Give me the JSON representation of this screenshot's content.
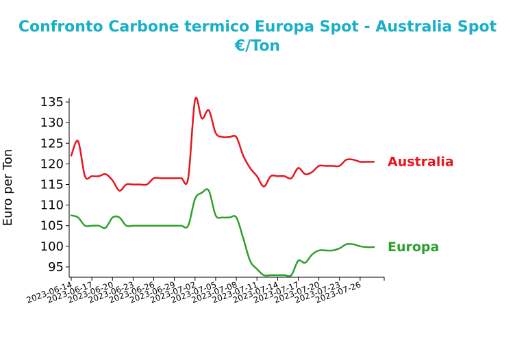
{
  "chart_data": {
    "type": "line",
    "title": "Confronto Carbone termico Europa Spot - Australia Spot",
    "subtitle": "€/Ton",
    "ylabel": "Euro per Ton",
    "xlabel": "",
    "ylim": [
      92.5,
      136
    ],
    "yticks": [
      95,
      100,
      105,
      110,
      115,
      120,
      125,
      130,
      135
    ],
    "xlim": [
      "2023-06-14",
      "2023-07-29"
    ],
    "xticks": [
      "2023-06-14",
      "2023-06-17",
      "2023-06-20",
      "2023-06-23",
      "2023-06-26",
      "2023-06-29",
      "2023-07-02",
      "2023-07-05",
      "2023-07-08",
      "2023-07-11",
      "2023-07-14",
      "2023-07-17",
      "2023-07-20",
      "2023-07-23",
      "2023-07-26"
    ],
    "grid": false,
    "legend": "right, labels at line ends",
    "series": [
      {
        "name": "Australia",
        "color": "#e8141c",
        "x": [
          "2023-06-14",
          "2023-06-15",
          "2023-06-16",
          "2023-06-17",
          "2023-06-18",
          "2023-06-19",
          "2023-06-20",
          "2023-06-21",
          "2023-06-22",
          "2023-06-23",
          "2023-06-24",
          "2023-06-25",
          "2023-06-26",
          "2023-06-27",
          "2023-06-28",
          "2023-06-29",
          "2023-06-30",
          "2023-07-01",
          "2023-07-02",
          "2023-07-03",
          "2023-07-04",
          "2023-07-05",
          "2023-07-06",
          "2023-07-07",
          "2023-07-08",
          "2023-07-09",
          "2023-07-10",
          "2023-07-11",
          "2023-07-12",
          "2023-07-13",
          "2023-07-14",
          "2023-07-15",
          "2023-07-16",
          "2023-07-17",
          "2023-07-18",
          "2023-07-19",
          "2023-07-20",
          "2023-07-21",
          "2023-07-22",
          "2023-07-23",
          "2023-07-24",
          "2023-07-25",
          "2023-07-26",
          "2023-07-27",
          "2023-07-28"
        ],
        "values": [
          122,
          125.5,
          117,
          117,
          117,
          117.5,
          116,
          113.5,
          115,
          115,
          115,
          115,
          116.5,
          116.5,
          116.5,
          116.5,
          116.5,
          116.5,
          135.5,
          131,
          133,
          127.5,
          126.5,
          126.5,
          126.5,
          122,
          119,
          117,
          114.5,
          117,
          117,
          117,
          116.5,
          119,
          117.5,
          118,
          119.5,
          119.5,
          119.5,
          119.5,
          121,
          121,
          120.5,
          120.5,
          120.5
        ]
      },
      {
        "name": "Europa",
        "color": "#2ca02c",
        "x": [
          "2023-06-14",
          "2023-06-15",
          "2023-06-16",
          "2023-06-17",
          "2023-06-18",
          "2023-06-19",
          "2023-06-20",
          "2023-06-21",
          "2023-06-22",
          "2023-06-23",
          "2023-06-24",
          "2023-06-25",
          "2023-06-26",
          "2023-06-27",
          "2023-06-28",
          "2023-06-29",
          "2023-06-30",
          "2023-07-01",
          "2023-07-02",
          "2023-07-03",
          "2023-07-04",
          "2023-07-05",
          "2023-07-06",
          "2023-07-07",
          "2023-07-08",
          "2023-07-09",
          "2023-07-10",
          "2023-07-11",
          "2023-07-12",
          "2023-07-13",
          "2023-07-14",
          "2023-07-15",
          "2023-07-16",
          "2023-07-17",
          "2023-07-18",
          "2023-07-19",
          "2023-07-20",
          "2023-07-21",
          "2023-07-22",
          "2023-07-23",
          "2023-07-24",
          "2023-07-25",
          "2023-07-26",
          "2023-07-27",
          "2023-07-28"
        ],
        "values": [
          107.5,
          107,
          105,
          105,
          105,
          104.5,
          107,
          107,
          105,
          105,
          105,
          105,
          105,
          105,
          105,
          105,
          105,
          105,
          111.5,
          113,
          113.5,
          107.5,
          107,
          107,
          107,
          102,
          96.5,
          94.5,
          93,
          93,
          93,
          93,
          93,
          96.5,
          96,
          98,
          99,
          99,
          99,
          99.5,
          100.5,
          100.5,
          100,
          99.8,
          99.8
        ]
      }
    ]
  }
}
